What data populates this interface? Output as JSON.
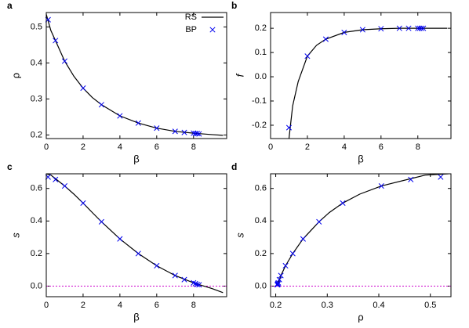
{
  "chart_data": [
    {
      "type": "line",
      "panel_label": "a",
      "xlabel": "β",
      "ylabel": "ρ",
      "ylabel_italic": false,
      "xlim": [
        0,
        9.8
      ],
      "xticks": [
        0,
        2,
        4,
        6,
        8
      ],
      "ylim": [
        0.19,
        0.54
      ],
      "yticks": [
        0.2,
        0.3,
        0.4,
        0.5
      ],
      "legend": "top-right",
      "series": [
        {
          "name": "RS",
          "color": "#000000",
          "marker": "line",
          "x": [
            0,
            0.25,
            0.5,
            1,
            1.5,
            2,
            2.5,
            3,
            4,
            5,
            6,
            7,
            8,
            9,
            9.6
          ],
          "values": [
            0.535,
            0.49,
            0.462,
            0.405,
            0.363,
            0.33,
            0.304,
            0.284,
            0.253,
            0.233,
            0.219,
            0.21,
            0.205,
            0.201,
            0.199
          ]
        },
        {
          "name": "BP",
          "color": "#0000ee",
          "marker": "x",
          "x": [
            0.1,
            0.5,
            1,
            2,
            3,
            4,
            5,
            6,
            7,
            7.5,
            8,
            8.1,
            8.2,
            8.3
          ],
          "values": [
            0.52,
            0.462,
            0.405,
            0.33,
            0.284,
            0.253,
            0.233,
            0.219,
            0.21,
            0.207,
            0.205,
            0.204,
            0.204,
            0.203
          ]
        }
      ]
    },
    {
      "type": "line",
      "panel_label": "b",
      "xlabel": "β",
      "ylabel": "f",
      "ylabel_italic": true,
      "xlim": [
        0,
        9.8
      ],
      "xticks": [
        0,
        2,
        4,
        6,
        8
      ],
      "ylim": [
        -0.255,
        0.265
      ],
      "yticks": [
        -0.2,
        -0.1,
        {
          "value": 0,
          "label": "0.0"
        },
        0.1,
        0.2
      ],
      "series": [
        {
          "color": "#000000",
          "marker": "line",
          "x": [
            1,
            1.2,
            1.5,
            2,
            2.5,
            3,
            4,
            5,
            6,
            7,
            8,
            9.6
          ],
          "values": [
            -0.255,
            -0.12,
            -0.02,
            0.085,
            0.13,
            0.155,
            0.183,
            0.194,
            0.198,
            0.2,
            0.2,
            0.2
          ]
        },
        {
          "color": "#0000ee",
          "marker": "x",
          "x": [
            1,
            2,
            3,
            4,
            5,
            6,
            7,
            7.5,
            8,
            8.1,
            8.2,
            8.3
          ],
          "values": [
            -0.21,
            0.085,
            0.155,
            0.183,
            0.194,
            0.198,
            0.2,
            0.2,
            0.2,
            0.2,
            0.2,
            0.2
          ]
        }
      ]
    },
    {
      "type": "line",
      "panel_label": "c",
      "xlabel": "β",
      "ylabel": "s",
      "ylabel_italic": true,
      "xlim": [
        0,
        9.8
      ],
      "xticks": [
        0,
        2,
        4,
        6,
        8
      ],
      "ylim": [
        -0.065,
        0.69
      ],
      "yticks": [
        {
          "value": 0,
          "label": "0.0"
        },
        0.2,
        0.4,
        0.6
      ],
      "reference_line": {
        "value": 0,
        "color": "#cc00cc"
      },
      "series": [
        {
          "color": "#000000",
          "marker": "line",
          "x": [
            0,
            0.25,
            0.5,
            1,
            1.5,
            2,
            2.5,
            3,
            4,
            5,
            6,
            7,
            8,
            9,
            9.6
          ],
          "values": [
            0.69,
            0.682,
            0.66,
            0.615,
            0.565,
            0.51,
            0.452,
            0.395,
            0.29,
            0.2,
            0.125,
            0.065,
            0.02,
            -0.015,
            -0.04
          ]
        },
        {
          "color": "#0000ee",
          "marker": "x",
          "x": [
            0.1,
            0.5,
            1,
            2,
            3,
            4,
            5,
            6,
            7,
            7.5,
            8,
            8.1,
            8.2,
            8.3
          ],
          "values": [
            0.67,
            0.655,
            0.615,
            0.51,
            0.395,
            0.29,
            0.2,
            0.125,
            0.065,
            0.04,
            0.02,
            0.015,
            0.01,
            0.008
          ]
        }
      ]
    },
    {
      "type": "line",
      "panel_label": "d",
      "xlabel": "ρ",
      "ylabel": "s",
      "ylabel_italic": true,
      "xlim": [
        0.19,
        0.54
      ],
      "xticks": [
        0.2,
        0.3,
        0.4,
        0.5
      ],
      "ylim": [
        -0.065,
        0.69
      ],
      "yticks": [
        {
          "value": 0,
          "label": "0.0"
        },
        0.2,
        0.4,
        0.6
      ],
      "reference_line": {
        "value": 0,
        "color": "#cc00cc"
      },
      "series": [
        {
          "color": "#000000",
          "marker": "line",
          "x": [
            0.535,
            0.49,
            0.462,
            0.405,
            0.363,
            0.33,
            0.304,
            0.284,
            0.253,
            0.233,
            0.219,
            0.21,
            0.205
          ],
          "values": [
            0.69,
            0.682,
            0.66,
            0.615,
            0.565,
            0.51,
            0.452,
            0.395,
            0.29,
            0.2,
            0.125,
            0.065,
            0.02
          ]
        },
        {
          "color": "#0000ee",
          "marker": "x",
          "x": [
            0.52,
            0.462,
            0.405,
            0.33,
            0.284,
            0.253,
            0.233,
            0.219,
            0.21,
            0.207,
            0.205,
            0.204,
            0.204,
            0.203
          ],
          "values": [
            0.67,
            0.655,
            0.615,
            0.51,
            0.395,
            0.29,
            0.2,
            0.125,
            0.065,
            0.04,
            0.02,
            0.015,
            0.01,
            0.008
          ]
        }
      ]
    }
  ]
}
